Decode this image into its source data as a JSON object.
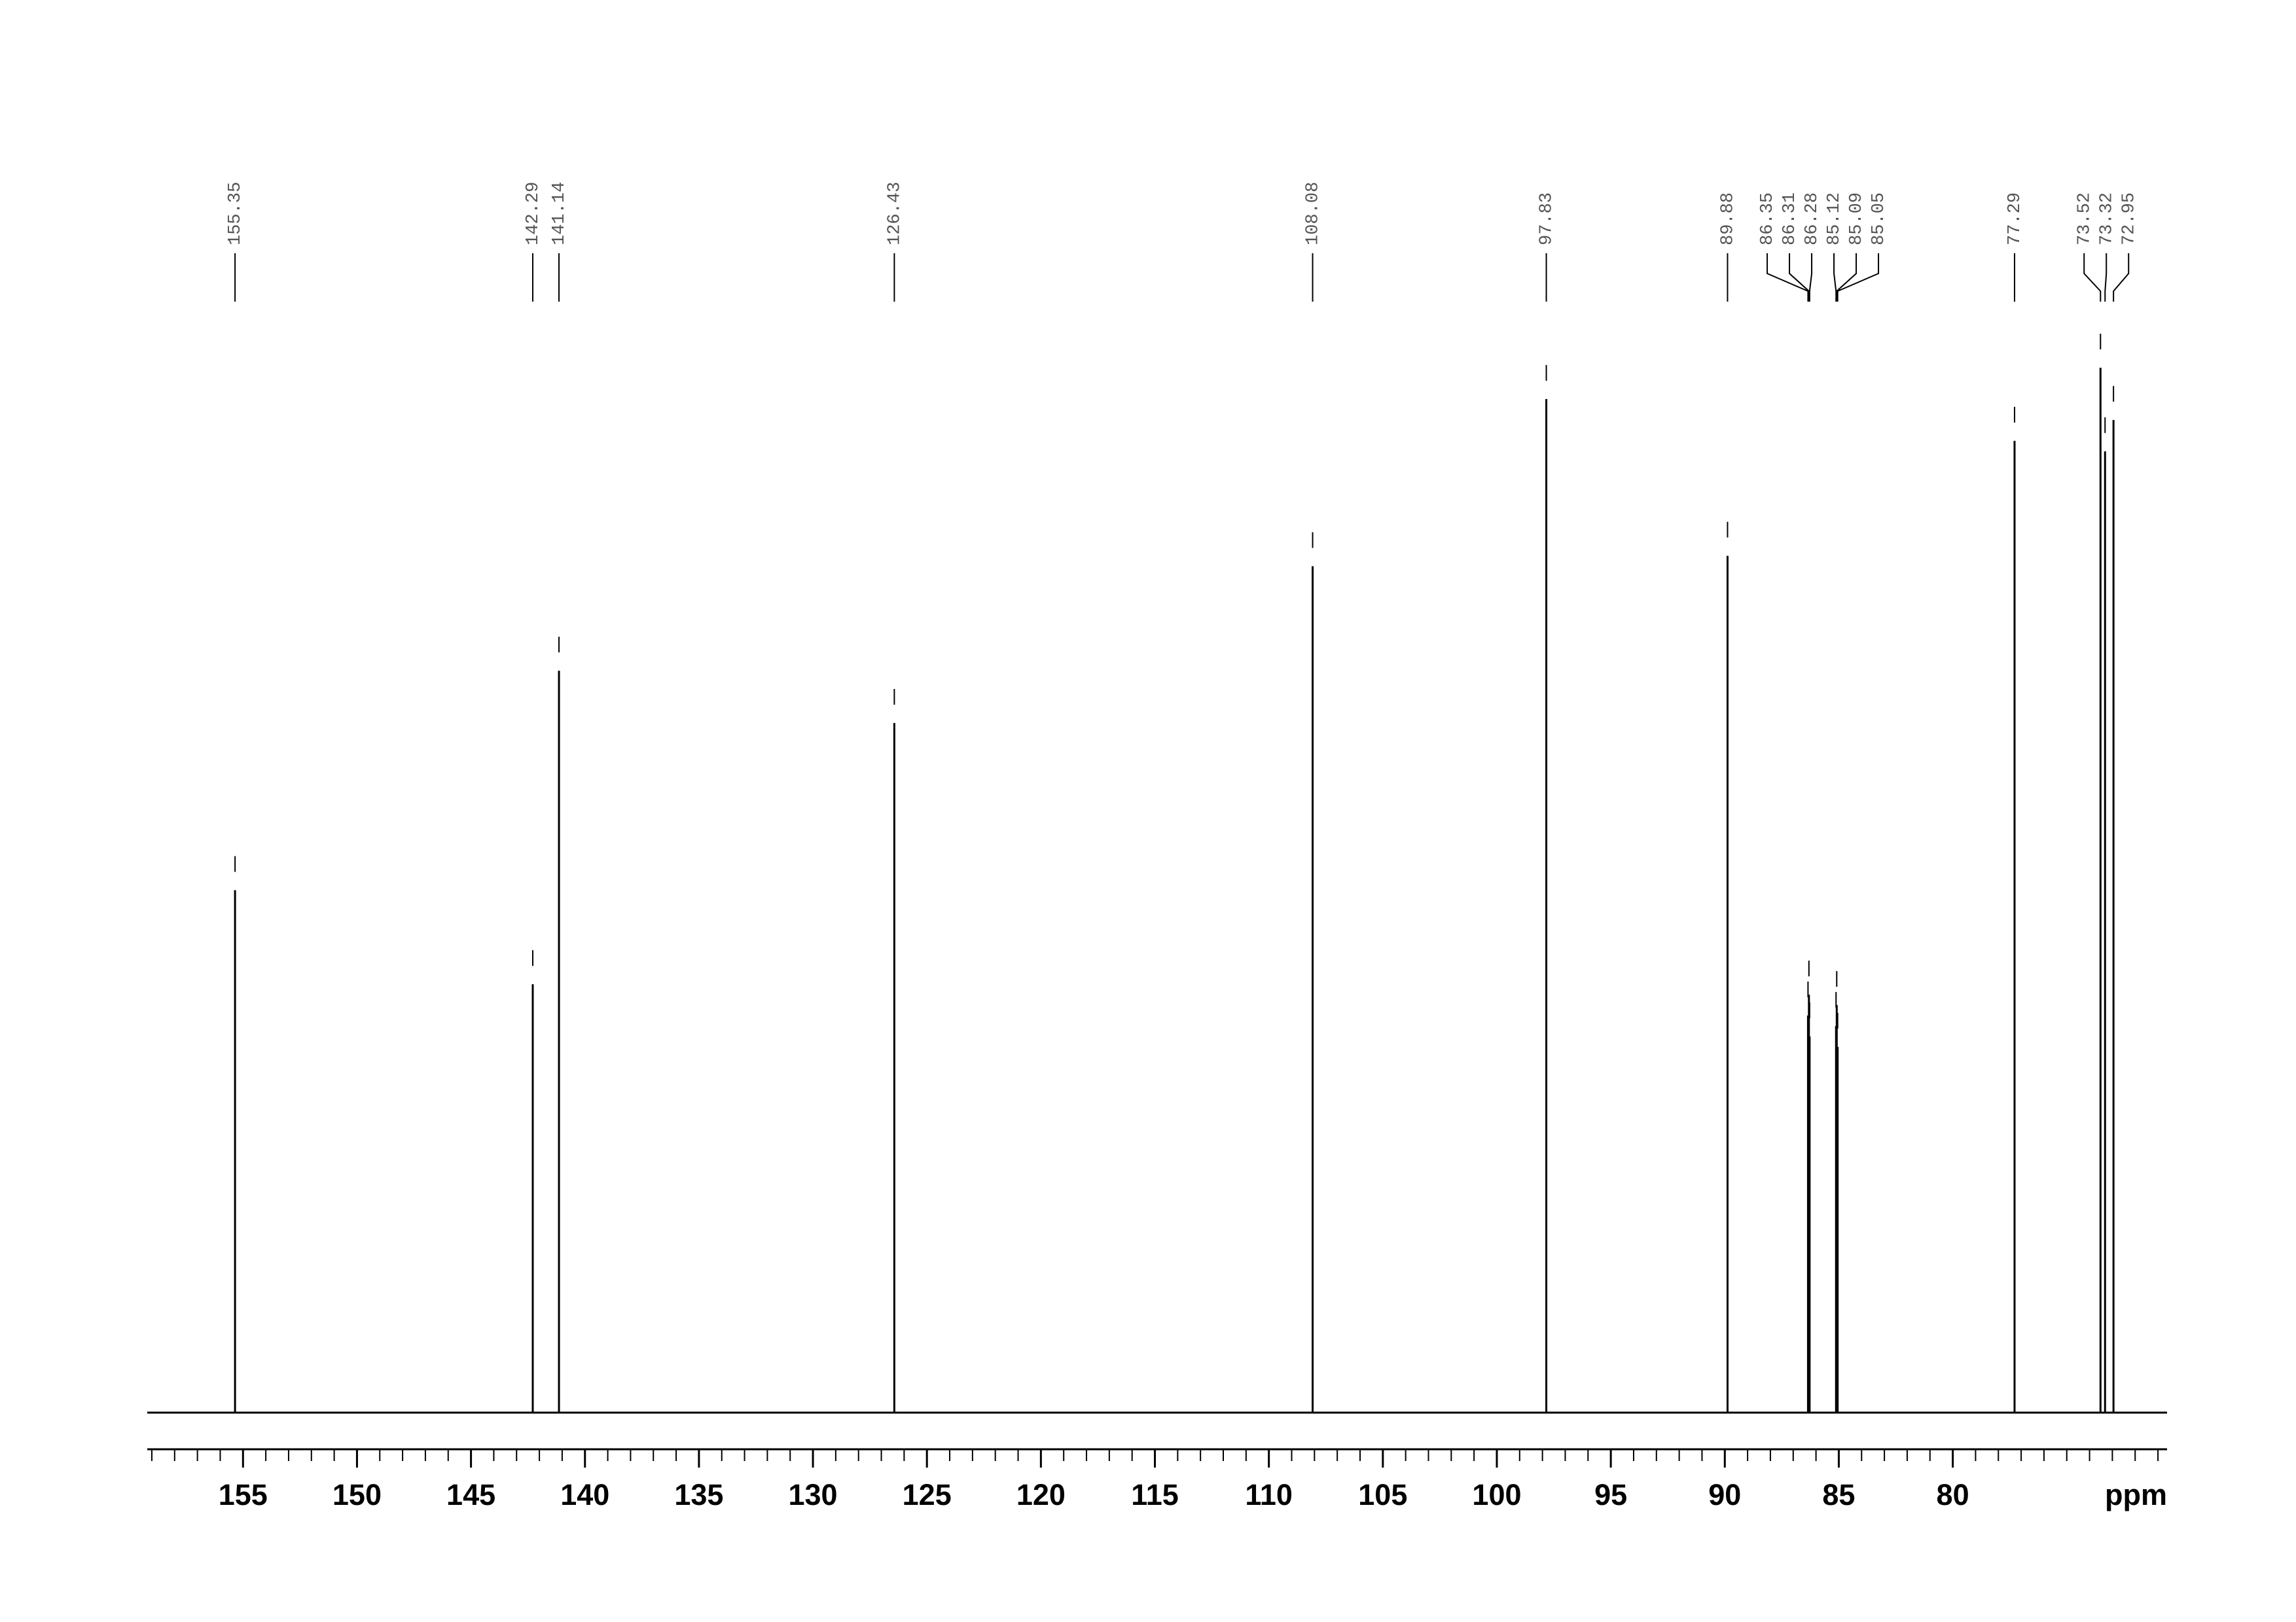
{
  "chart_data": {
    "type": "nmr",
    "x_label": "ppm",
    "x": [
      155.35,
      142.29,
      141.14,
      126.43,
      108.08,
      97.83,
      89.88,
      86.35,
      86.31,
      86.28,
      85.12,
      85.09,
      85.05,
      77.29,
      73.52,
      73.32,
      72.95
    ],
    "values": [
      50,
      41,
      71,
      66,
      81,
      97,
      82,
      38,
      40,
      36,
      37,
      39,
      35,
      93,
      100,
      92,
      95
    ],
    "color": "#000000",
    "xlim": [
      159.2,
      70.6
    ],
    "xticks": [
      155,
      150,
      145,
      140,
      135,
      130,
      125,
      120,
      115,
      110,
      105,
      100,
      95,
      90,
      85,
      80
    ],
    "xticks_minor": [
      159,
      158,
      157,
      156,
      154,
      153,
      152,
      151,
      149,
      148,
      147,
      146,
      144,
      143,
      142,
      141,
      139,
      138,
      137,
      136,
      134,
      133,
      132,
      131,
      129,
      128,
      127,
      126,
      124,
      123,
      122,
      121,
      119,
      118,
      117,
      116,
      114,
      113,
      112,
      111,
      109,
      108,
      107,
      106,
      104,
      103,
      102,
      101,
      99,
      98,
      97,
      96,
      94,
      93,
      92,
      91,
      89,
      88,
      87,
      86,
      84,
      83,
      82,
      81,
      79,
      78,
      77,
      76,
      75,
      74,
      73,
      72,
      71
    ],
    "ylim": [
      0,
      100
    ]
  }
}
